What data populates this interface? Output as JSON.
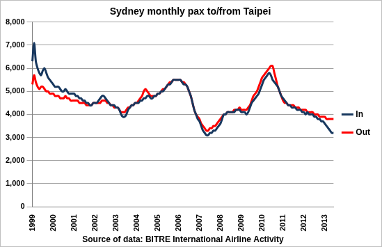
{
  "chart_data": {
    "type": "line",
    "title": "Sydney monthly pax to/from Taipei",
    "x_label": "Source of data: BITRE International Airline Activity",
    "categories": [
      "1999",
      null,
      null,
      null,
      null,
      null,
      null,
      null,
      null,
      null,
      null,
      null,
      "2000",
      null,
      null,
      null,
      null,
      null,
      null,
      null,
      null,
      null,
      null,
      null,
      "2001",
      null,
      null,
      null,
      null,
      null,
      null,
      null,
      null,
      null,
      null,
      null,
      "2002",
      null,
      null,
      null,
      null,
      null,
      null,
      null,
      null,
      null,
      null,
      null,
      "2003",
      null,
      null,
      null,
      null,
      null,
      null,
      null,
      null,
      null,
      null,
      null,
      "2004",
      null,
      null,
      null,
      null,
      null,
      null,
      null,
      null,
      null,
      null,
      null,
      "2005",
      null,
      null,
      null,
      null,
      null,
      null,
      null,
      null,
      null,
      null,
      null,
      "2006",
      null,
      null,
      null,
      null,
      null,
      null,
      null,
      null,
      null,
      null,
      null,
      "2007",
      null,
      null,
      null,
      null,
      null,
      null,
      null,
      null,
      null,
      null,
      null,
      "2008",
      null,
      null,
      null,
      null,
      null,
      null,
      null,
      null,
      null,
      null,
      null,
      "2009",
      null,
      null,
      null,
      null,
      null,
      null,
      null,
      null,
      null,
      null,
      null,
      "2010",
      null,
      null,
      null,
      null,
      null,
      null,
      null,
      null,
      null,
      null,
      null,
      "2011",
      null,
      null,
      null,
      null,
      null,
      null,
      null,
      null,
      null,
      null,
      null,
      "2012",
      null,
      null,
      null,
      null,
      null,
      null,
      null,
      null,
      null,
      null,
      null,
      "2013",
      null,
      null,
      null,
      null,
      null
    ],
    "series": [
      {
        "name": "In",
        "color": "#17375e",
        "values": [
          6300,
          7100,
          6300,
          6000,
          5800,
          5700,
          5900,
          6000,
          5800,
          5600,
          5500,
          5400,
          5300,
          5200,
          5200,
          5200,
          5100,
          5000,
          5000,
          5100,
          5000,
          4900,
          4900,
          4900,
          4900,
          4800,
          4800,
          4700,
          4700,
          4600,
          4600,
          4500,
          4500,
          4400,
          4400,
          4500,
          4500,
          4500,
          4600,
          4700,
          4800,
          4800,
          4700,
          4600,
          4500,
          4400,
          4400,
          4400,
          4300,
          4300,
          4200,
          4000,
          3900,
          3900,
          4000,
          4200,
          4300,
          4400,
          4400,
          4500,
          4500,
          4500,
          4600,
          4600,
          4700,
          4700,
          4800,
          4800,
          4700,
          4700,
          4800,
          4800,
          4900,
          4900,
          5000,
          5000,
          5100,
          5200,
          5300,
          5300,
          5400,
          5500,
          5500,
          5500,
          5500,
          5500,
          5400,
          5300,
          5300,
          5200,
          5000,
          4800,
          4500,
          4200,
          4000,
          3800,
          3700,
          3500,
          3300,
          3200,
          3100,
          3100,
          3200,
          3200,
          3300,
          3300,
          3400,
          3500,
          3600,
          3800,
          4000,
          4000,
          4100,
          4100,
          4100,
          4100,
          4100,
          4200,
          4200,
          4200,
          4100,
          4100,
          4100,
          4000,
          4100,
          4300,
          4500,
          4600,
          4700,
          4800,
          4900,
          5100,
          5300,
          5500,
          5600,
          5700,
          5800,
          5700,
          5500,
          5400,
          5300,
          5200,
          5000,
          4800,
          4700,
          4600,
          4500,
          4400,
          4400,
          4300,
          4300,
          4300,
          4200,
          4200,
          4200,
          4100,
          4100,
          4000,
          4100,
          4000,
          4000,
          4000,
          3900,
          3900,
          3800,
          3800,
          3700,
          3700,
          3600,
          3500,
          3400,
          3300,
          3200,
          3200
        ]
      },
      {
        "name": "Out",
        "color": "#ff0000",
        "values": [
          5300,
          5700,
          5400,
          5200,
          5100,
          5200,
          5200,
          5100,
          5000,
          5000,
          4900,
          4900,
          4900,
          4800,
          4800,
          4800,
          4700,
          4700,
          4700,
          4800,
          4700,
          4700,
          4600,
          4600,
          4600,
          4600,
          4600,
          4500,
          4500,
          4500,
          4500,
          4400,
          4400,
          4400,
          4400,
          4500,
          4500,
          4500,
          4500,
          4500,
          4600,
          4600,
          4600,
          4500,
          4500,
          4400,
          4400,
          4300,
          4300,
          4300,
          4200,
          4100,
          4100,
          4100,
          4200,
          4300,
          4300,
          4400,
          4400,
          4500,
          4500,
          4600,
          4700,
          4800,
          5000,
          5100,
          5000,
          4900,
          4800,
          4800,
          4800,
          4800,
          4900,
          4900,
          5000,
          5100,
          5100,
          5200,
          5300,
          5400,
          5400,
          5500,
          5500,
          5500,
          5500,
          5500,
          5400,
          5400,
          5300,
          5200,
          5000,
          4800,
          4500,
          4200,
          4000,
          3900,
          3800,
          3600,
          3500,
          3400,
          3300,
          3300,
          3400,
          3400,
          3500,
          3500,
          3600,
          3700,
          3800,
          3900,
          4000,
          4000,
          4100,
          4100,
          4100,
          4100,
          4200,
          4200,
          4200,
          4300,
          4200,
          4200,
          4200,
          4200,
          4300,
          4400,
          4600,
          4800,
          4900,
          5000,
          5200,
          5400,
          5600,
          5700,
          5800,
          5900,
          6000,
          6100,
          6100,
          5800,
          5500,
          5200,
          5000,
          4800,
          4600,
          4500,
          4500,
          4400,
          4400,
          4400,
          4400,
          4300,
          4300,
          4300,
          4200,
          4200,
          4200,
          4200,
          4100,
          4100,
          4100,
          4100,
          4000,
          4000,
          4000,
          3900,
          3900,
          3900,
          3900,
          3800,
          3800,
          3800,
          3800,
          3800
        ]
      }
    ],
    "ylim": [
      0,
      8000
    ],
    "yticks": [
      0,
      {
        "value": 1000,
        "label": "1,000"
      },
      {
        "value": 2000,
        "label": "2,000"
      },
      {
        "value": 3000,
        "label": "3,000"
      },
      {
        "value": 4000,
        "label": "4,000"
      },
      {
        "value": 5000,
        "label": "5,000"
      },
      {
        "value": 6000,
        "label": "6,000"
      },
      {
        "value": 7000,
        "label": "7,000"
      },
      {
        "value": 8000,
        "label": "8,000"
      }
    ],
    "grid": true,
    "legend": "right"
  }
}
